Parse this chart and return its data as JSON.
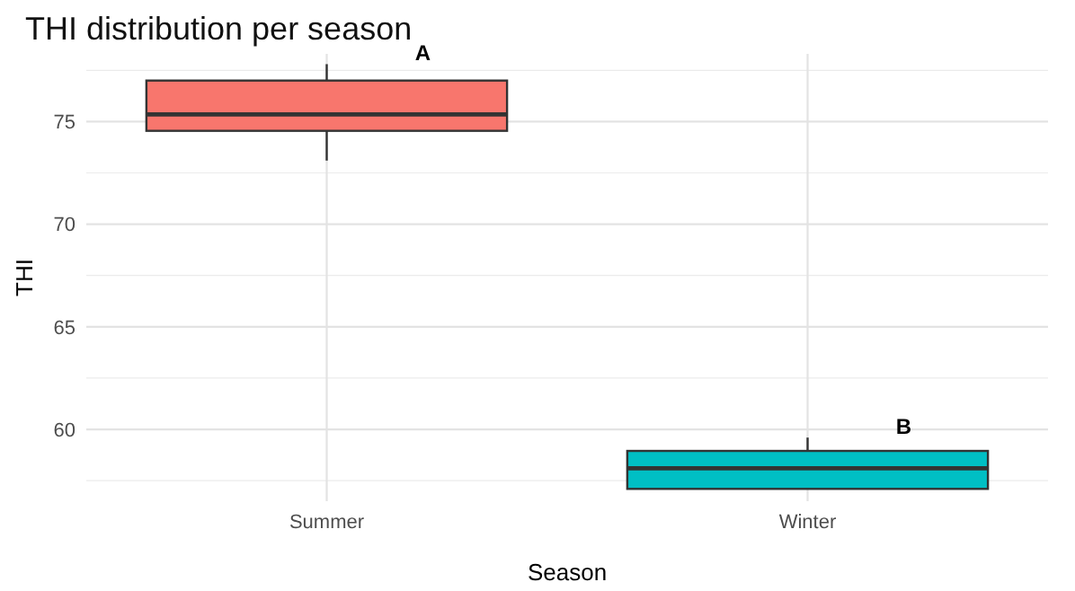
{
  "chart_data": {
    "type": "box",
    "title": "THI distribution per season",
    "xlabel": "Season",
    "ylabel": "THI",
    "categories": [
      "Summer",
      "Winter"
    ],
    "colors": [
      "#f8766d",
      "#00bfc4"
    ],
    "boxes": [
      {
        "low": 73.1,
        "q1": 74.55,
        "median": 75.35,
        "q3": 77.0,
        "high": 77.8
      },
      {
        "low": 57.1,
        "q1": 57.1,
        "median": 58.1,
        "q3": 58.95,
        "high": 59.6
      }
    ],
    "ylim": [
      56.5,
      78.3
    ],
    "yticks": [
      60,
      65,
      70,
      75
    ],
    "grid": true,
    "annotations": [
      "A",
      "B"
    ]
  }
}
